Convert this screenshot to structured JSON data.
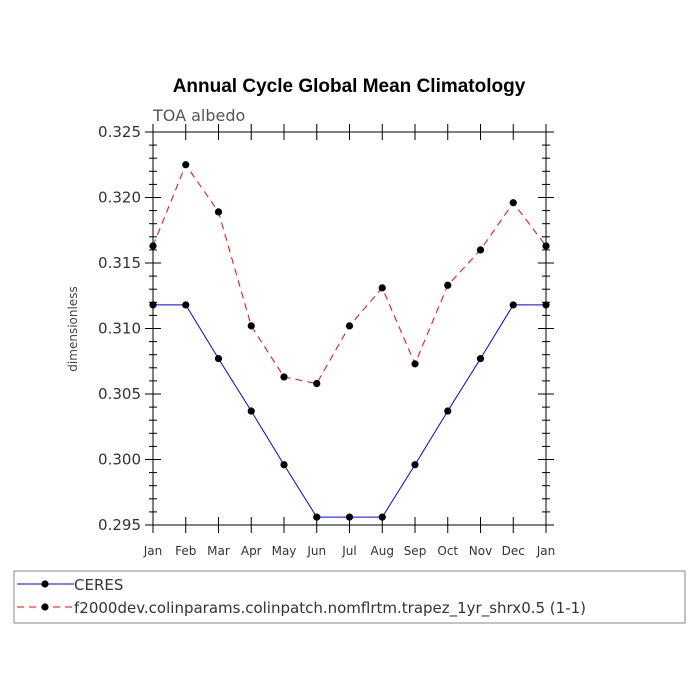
{
  "chart_data": {
    "type": "line",
    "title": "Annual Cycle Global Mean Climatology",
    "subtitle": "TOA albedo",
    "xlabel": "",
    "ylabel": "dimensionless",
    "categories": [
      "Jan",
      "Feb",
      "Mar",
      "Apr",
      "May",
      "Jun",
      "Jul",
      "Aug",
      "Sep",
      "Oct",
      "Nov",
      "Dec",
      "Jan"
    ],
    "ylim": [
      0.295,
      0.325
    ],
    "yticks": [
      "0.295",
      "0.300",
      "0.305",
      "0.310",
      "0.315",
      "0.320",
      "0.325"
    ],
    "series": [
      {
        "name": "CERES",
        "color": "#0000ff",
        "style": "solid",
        "values": [
          0.3118,
          0.3118,
          0.3077,
          0.3037,
          0.2996,
          0.2956,
          0.2956,
          0.2956,
          0.2996,
          0.3037,
          0.3077,
          0.3118,
          0.3118
        ]
      },
      {
        "name": "f2000dev.colinparams.colinpatch.nomflrtm.trapez_1yr_shrx0.5 (1-1)",
        "color": "#ff0000",
        "style": "dashed",
        "values": [
          0.3163,
          0.3225,
          0.3189,
          0.3102,
          0.3063,
          0.3058,
          0.3102,
          0.3131,
          0.3073,
          0.3133,
          0.316,
          0.3196,
          0.3163
        ]
      }
    ],
    "legend": "bottom"
  }
}
